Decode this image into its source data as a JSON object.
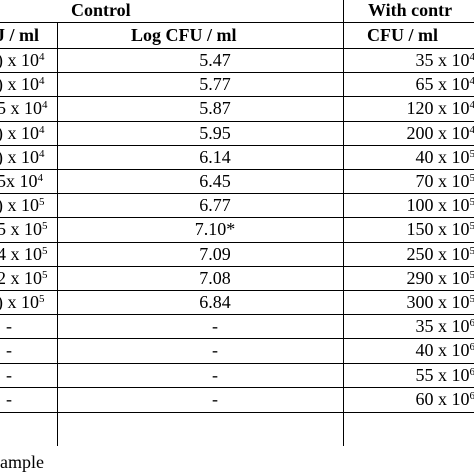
{
  "table": {
    "group_headers": {
      "control": "Control",
      "with_control": "With contr"
    },
    "column_headers": {
      "control_cfu": "J / ml",
      "log_cfu": "Log CFU / ml",
      "with_cfu": "CFU / ml"
    },
    "rows": [
      {
        "control_cfu_mantissa": ")",
        "control_cfu_times": " x 10",
        "control_cfu_exp": "4",
        "log_cfu": "5.47",
        "with_cfu_mantissa": "35 x 10",
        "with_cfu_exp": "4"
      },
      {
        "control_cfu_mantissa": ")",
        "control_cfu_times": " x 10",
        "control_cfu_exp": "4",
        "log_cfu": "5.77",
        "with_cfu_mantissa": "65 x 10",
        "with_cfu_exp": "4"
      },
      {
        "control_cfu_mantissa": "5",
        "control_cfu_times": " x 10",
        "control_cfu_exp": "4",
        "log_cfu": "5.87",
        "with_cfu_mantissa": "120 x 10",
        "with_cfu_exp": "4"
      },
      {
        "control_cfu_mantissa": ")",
        "control_cfu_times": " x 10",
        "control_cfu_exp": "4",
        "log_cfu": "5.95",
        "with_cfu_mantissa": "200 x 10",
        "with_cfu_exp": "4"
      },
      {
        "control_cfu_mantissa": ")",
        "control_cfu_times": " x 10",
        "control_cfu_exp": "4",
        "log_cfu": "6.14",
        "with_cfu_mantissa": "40 x 10",
        "with_cfu_exp": "5"
      },
      {
        "control_cfu_mantissa": "5",
        "control_cfu_times": "x 10",
        "control_cfu_exp": "4",
        "log_cfu": "6.45",
        "with_cfu_mantissa": "70 x 10",
        "with_cfu_exp": "5"
      },
      {
        "control_cfu_mantissa": ")",
        "control_cfu_times": " x 10",
        "control_cfu_exp": "5",
        "log_cfu": "6.77",
        "with_cfu_mantissa": "100 x 10",
        "with_cfu_exp": "5"
      },
      {
        "control_cfu_mantissa": "5",
        "control_cfu_times": " x 10",
        "control_cfu_exp": "5",
        "log_cfu": "7.10*",
        "with_cfu_mantissa": "150 x 10",
        "with_cfu_exp": "5"
      },
      {
        "control_cfu_mantissa": "4",
        "control_cfu_times": " x 10",
        "control_cfu_exp": "5",
        "log_cfu": "7.09",
        "with_cfu_mantissa": "250 x 10",
        "with_cfu_exp": "5"
      },
      {
        "control_cfu_mantissa": "2",
        "control_cfu_times": " x 10",
        "control_cfu_exp": "5",
        "log_cfu": "7.08",
        "with_cfu_mantissa": "290 x 10",
        "with_cfu_exp": "5"
      },
      {
        "control_cfu_mantissa": ")",
        "control_cfu_times": " x 10",
        "control_cfu_exp": "5",
        "log_cfu": "6.84",
        "with_cfu_mantissa": "300 x 10",
        "with_cfu_exp": "5"
      },
      {
        "control_cfu_mantissa": "-",
        "control_cfu_times": "",
        "control_cfu_exp": "",
        "log_cfu": "-",
        "with_cfu_mantissa": "35 x 10",
        "with_cfu_exp": "6"
      },
      {
        "control_cfu_mantissa": "-",
        "control_cfu_times": "",
        "control_cfu_exp": "",
        "log_cfu": "-",
        "with_cfu_mantissa": "40 x 10",
        "with_cfu_exp": "6"
      },
      {
        "control_cfu_mantissa": "-",
        "control_cfu_times": "",
        "control_cfu_exp": "",
        "log_cfu": "-",
        "with_cfu_mantissa": "55 x 10",
        "with_cfu_exp": "6"
      },
      {
        "control_cfu_mantissa": "-",
        "control_cfu_times": "",
        "control_cfu_exp": "",
        "log_cfu": "-",
        "with_cfu_mantissa": "60 x 10",
        "with_cfu_exp": "6"
      }
    ]
  },
  "footnote": "ample"
}
